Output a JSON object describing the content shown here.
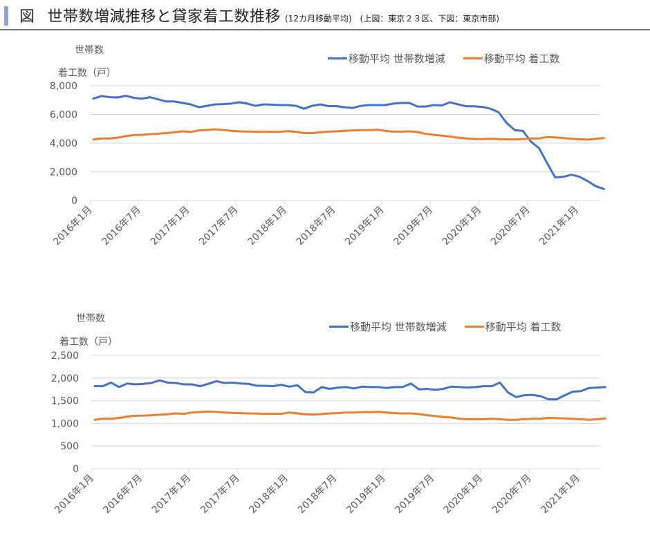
{
  "header": {
    "figure_label": "図",
    "title": "世帯数増減推移と貸家着工数推移",
    "subtitle": "(12カ月移動平均)　(上図：東京２３区、下図：東京市部)"
  },
  "colors": {
    "household": "#4472c4",
    "starts": "#ed7d31",
    "grid": "#d9d9d9",
    "accent": "#8ea3cf"
  },
  "chart_data": [
    {
      "type": "line",
      "title": "東京２３区",
      "ylabel_line1": "世帯数",
      "ylabel_line2": "着工数（戸）",
      "ylim": [
        0,
        8000
      ],
      "yticks": [
        0,
        2000,
        4000,
        6000,
        8000
      ],
      "ytick_labels": [
        "0",
        "2,000",
        "4,000",
        "6,000",
        "8,000"
      ],
      "xtick_labels": [
        "2016年1月",
        "2016年7月",
        "2017年1月",
        "2017年7月",
        "2018年1月",
        "2018年7月",
        "2019年1月",
        "2019年7月",
        "2020年1月",
        "2020年7月",
        "2021年1月"
      ],
      "x_start": "2016-01",
      "x_end": "2021-04",
      "grid": true,
      "legend_position": "top-right",
      "series": [
        {
          "name": "移動平均 世帯数増減",
          "color": "#4472c4",
          "values": [
            7100,
            7280,
            7200,
            7180,
            7300,
            7150,
            7100,
            7200,
            7050,
            6900,
            6900,
            6800,
            6700,
            6500,
            6600,
            6700,
            6720,
            6750,
            6850,
            6750,
            6600,
            6700,
            6680,
            6650,
            6650,
            6600,
            6400,
            6600,
            6700,
            6580,
            6580,
            6500,
            6450,
            6600,
            6650,
            6650,
            6650,
            6750,
            6800,
            6800,
            6550,
            6550,
            6650,
            6620,
            6850,
            6700,
            6570,
            6570,
            6520,
            6400,
            6150,
            5400,
            4900,
            4850,
            4100,
            3650,
            2600,
            1600,
            1650,
            1800,
            1650,
            1350,
            1000,
            800
          ]
        },
        {
          "name": "移動平均 着工数",
          "color": "#ed7d31",
          "values": [
            4250,
            4320,
            4320,
            4380,
            4480,
            4560,
            4580,
            4620,
            4660,
            4700,
            4750,
            4820,
            4780,
            4880,
            4920,
            4960,
            4920,
            4860,
            4820,
            4810,
            4790,
            4780,
            4780,
            4780,
            4840,
            4780,
            4700,
            4700,
            4750,
            4800,
            4820,
            4860,
            4880,
            4900,
            4900,
            4940,
            4850,
            4800,
            4800,
            4820,
            4770,
            4650,
            4580,
            4520,
            4460,
            4380,
            4330,
            4280,
            4280,
            4300,
            4280,
            4260,
            4250,
            4280,
            4320,
            4330,
            4420,
            4400,
            4350,
            4300,
            4270,
            4240,
            4300,
            4350
          ]
        }
      ]
    },
    {
      "type": "line",
      "title": "東京市部",
      "ylabel_line1": "世帯数",
      "ylabel_line2": "着工数（戸）",
      "ylim": [
        0,
        2500
      ],
      "yticks": [
        0,
        500,
        1000,
        1500,
        2000,
        2500
      ],
      "ytick_labels": [
        "0",
        "500",
        "1,000",
        "1,500",
        "2,000",
        "2,500"
      ],
      "xtick_labels": [
        "2016年1月",
        "2016年7月",
        "2017年1月",
        "2017年7月",
        "2018年1月",
        "2018年7月",
        "2019年1月",
        "2019年7月",
        "2020年1月",
        "2020年7月",
        "2021年1月"
      ],
      "x_start": "2016-01",
      "x_end": "2021-04",
      "grid": true,
      "legend_position": "top-right",
      "series": [
        {
          "name": "移動平均 世帯数増減",
          "color": "#4472c4",
          "values": [
            1820,
            1820,
            1900,
            1800,
            1880,
            1860,
            1870,
            1890,
            1950,
            1900,
            1890,
            1860,
            1860,
            1820,
            1870,
            1930,
            1890,
            1900,
            1880,
            1870,
            1830,
            1830,
            1820,
            1850,
            1810,
            1840,
            1690,
            1680,
            1800,
            1760,
            1790,
            1800,
            1770,
            1810,
            1800,
            1800,
            1780,
            1800,
            1800,
            1880,
            1750,
            1760,
            1740,
            1760,
            1810,
            1800,
            1790,
            1800,
            1820,
            1820,
            1900,
            1680,
            1580,
            1620,
            1630,
            1600,
            1530,
            1530,
            1620,
            1700,
            1710,
            1780,
            1790,
            1800
          ]
        },
        {
          "name": "移動平均 着工数",
          "color": "#ed7d31",
          "values": [
            1080,
            1100,
            1100,
            1120,
            1150,
            1170,
            1170,
            1180,
            1190,
            1200,
            1220,
            1210,
            1240,
            1250,
            1260,
            1255,
            1240,
            1230,
            1225,
            1220,
            1215,
            1210,
            1210,
            1210,
            1240,
            1220,
            1200,
            1195,
            1205,
            1220,
            1225,
            1240,
            1240,
            1250,
            1245,
            1255,
            1240,
            1225,
            1220,
            1220,
            1205,
            1180,
            1160,
            1140,
            1130,
            1100,
            1090,
            1090,
            1090,
            1100,
            1090,
            1080,
            1080,
            1090,
            1100,
            1100,
            1120,
            1115,
            1110,
            1100,
            1090,
            1080,
            1090,
            1110
          ]
        }
      ]
    }
  ]
}
